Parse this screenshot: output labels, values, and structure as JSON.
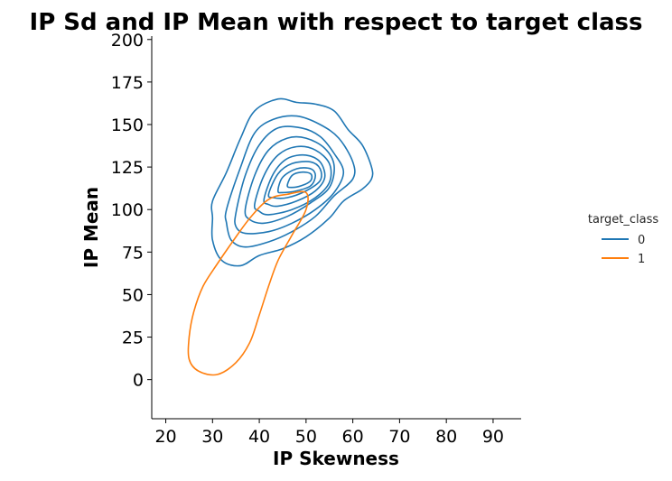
{
  "chart_data": {
    "type": "kde-contour",
    "title": "IP Sd and IP Mean with respect to target class",
    "xlabel": "IP Skewness",
    "ylabel": "IP Mean",
    "xlim": [
      17,
      96
    ],
    "ylim": [
      -23,
      202
    ],
    "xticks": [
      20,
      30,
      40,
      50,
      60,
      70,
      80,
      90
    ],
    "yticks": [
      0,
      25,
      50,
      75,
      100,
      125,
      150,
      175,
      200
    ],
    "grid": false,
    "legend": {
      "title": "target_class",
      "placement": "right",
      "entries": [
        "0",
        "1"
      ]
    },
    "series": [
      {
        "name": "0",
        "color": "#1f77b4",
        "contours": [
          [
            [
              30,
              105
            ],
            [
              33,
              122
            ],
            [
              36,
              142
            ],
            [
              39,
              158
            ],
            [
              44,
              165
            ],
            [
              48,
              163
            ],
            [
              52,
              162
            ],
            [
              56,
              158
            ],
            [
              59,
              147
            ],
            [
              62,
              138
            ],
            [
              64,
              125
            ],
            [
              64,
              118
            ],
            [
              62,
              112
            ],
            [
              58,
              105
            ],
            [
              55,
              95
            ],
            [
              50,
              84
            ],
            [
              45,
              77
            ],
            [
              40,
              73
            ],
            [
              36,
              67
            ],
            [
              32,
              70
            ],
            [
              30,
              82
            ],
            [
              30,
              95
            ]
          ],
          [
            [
              33,
              100
            ],
            [
              36,
              125
            ],
            [
              39,
              145
            ],
            [
              43,
              153
            ],
            [
              48,
              155
            ],
            [
              53,
              150
            ],
            [
              57,
              142
            ],
            [
              60,
              128
            ],
            [
              60,
              118
            ],
            [
              56,
              108
            ],
            [
              52,
              96
            ],
            [
              47,
              87
            ],
            [
              42,
              81
            ],
            [
              37,
              78
            ],
            [
              34,
              82
            ],
            [
              33,
              92
            ]
          ],
          [
            [
              35,
              98
            ],
            [
              37,
              120
            ],
            [
              40,
              138
            ],
            [
              44,
              148
            ],
            [
              49,
              148
            ],
            [
              53,
              143
            ],
            [
              56,
              133
            ],
            [
              58,
              122
            ],
            [
              56,
              110
            ],
            [
              52,
              100
            ],
            [
              47,
              92
            ],
            [
              42,
              87
            ],
            [
              37,
              86
            ],
            [
              35,
              90
            ]
          ],
          [
            [
              37,
              100
            ],
            [
              39,
              120
            ],
            [
              42,
              135
            ],
            [
              46,
              142
            ],
            [
              50,
              142
            ],
            [
              54,
              136
            ],
            [
              56,
              126
            ],
            [
              55,
              113
            ],
            [
              51,
              104
            ],
            [
              46,
              96
            ],
            [
              41,
              92
            ],
            [
              38,
              94
            ]
          ],
          [
            [
              39,
              103
            ],
            [
              41,
              120
            ],
            [
              44,
              132
            ],
            [
              48,
              137
            ],
            [
              52,
              135
            ],
            [
              55,
              127
            ],
            [
              55,
              116
            ],
            [
              52,
              107
            ],
            [
              47,
              100
            ],
            [
              42,
              97
            ],
            [
              40,
              99
            ]
          ],
          [
            [
              41,
              106
            ],
            [
              43,
              121
            ],
            [
              46,
              130
            ],
            [
              50,
              132
            ],
            [
              53,
              128
            ],
            [
              54,
              119
            ],
            [
              52,
              111
            ],
            [
              48,
              105
            ],
            [
              44,
              102
            ],
            [
              42,
              103
            ]
          ],
          [
            [
              42,
              109
            ],
            [
              44,
              121
            ],
            [
              47,
              127
            ],
            [
              51,
              128
            ],
            [
              53,
              124
            ],
            [
              53,
              117
            ],
            [
              50,
              111
            ],
            [
              46,
              107
            ],
            [
              43,
              107
            ]
          ],
          [
            [
              44,
              111
            ],
            [
              45,
              119
            ],
            [
              48,
              124
            ],
            [
              51,
              124
            ],
            [
              52,
              120
            ],
            [
              51,
              114
            ],
            [
              48,
              111
            ],
            [
              45,
              110
            ]
          ],
          [
            [
              46,
              114
            ],
            [
              47,
              120
            ],
            [
              49,
              122
            ],
            [
              51,
              121
            ],
            [
              51,
              117
            ],
            [
              49,
              114
            ],
            [
              47,
              113
            ]
          ]
        ]
      },
      {
        "name": "1",
        "color": "#ff7f0e",
        "contours": [
          [
            [
              25,
              25
            ],
            [
              26,
              40
            ],
            [
              28,
              55
            ],
            [
              31,
              68
            ],
            [
              34,
              80
            ],
            [
              38,
              95
            ],
            [
              42,
              106
            ],
            [
              46,
              109
            ],
            [
              50,
              110
            ],
            [
              50,
              100
            ],
            [
              47,
              85
            ],
            [
              44,
              70
            ],
            [
              42,
              55
            ],
            [
              40,
              38
            ],
            [
              38,
              22
            ],
            [
              35,
              10
            ],
            [
              31,
              3
            ],
            [
              27,
              5
            ],
            [
              25,
              12
            ]
          ]
        ]
      }
    ]
  }
}
